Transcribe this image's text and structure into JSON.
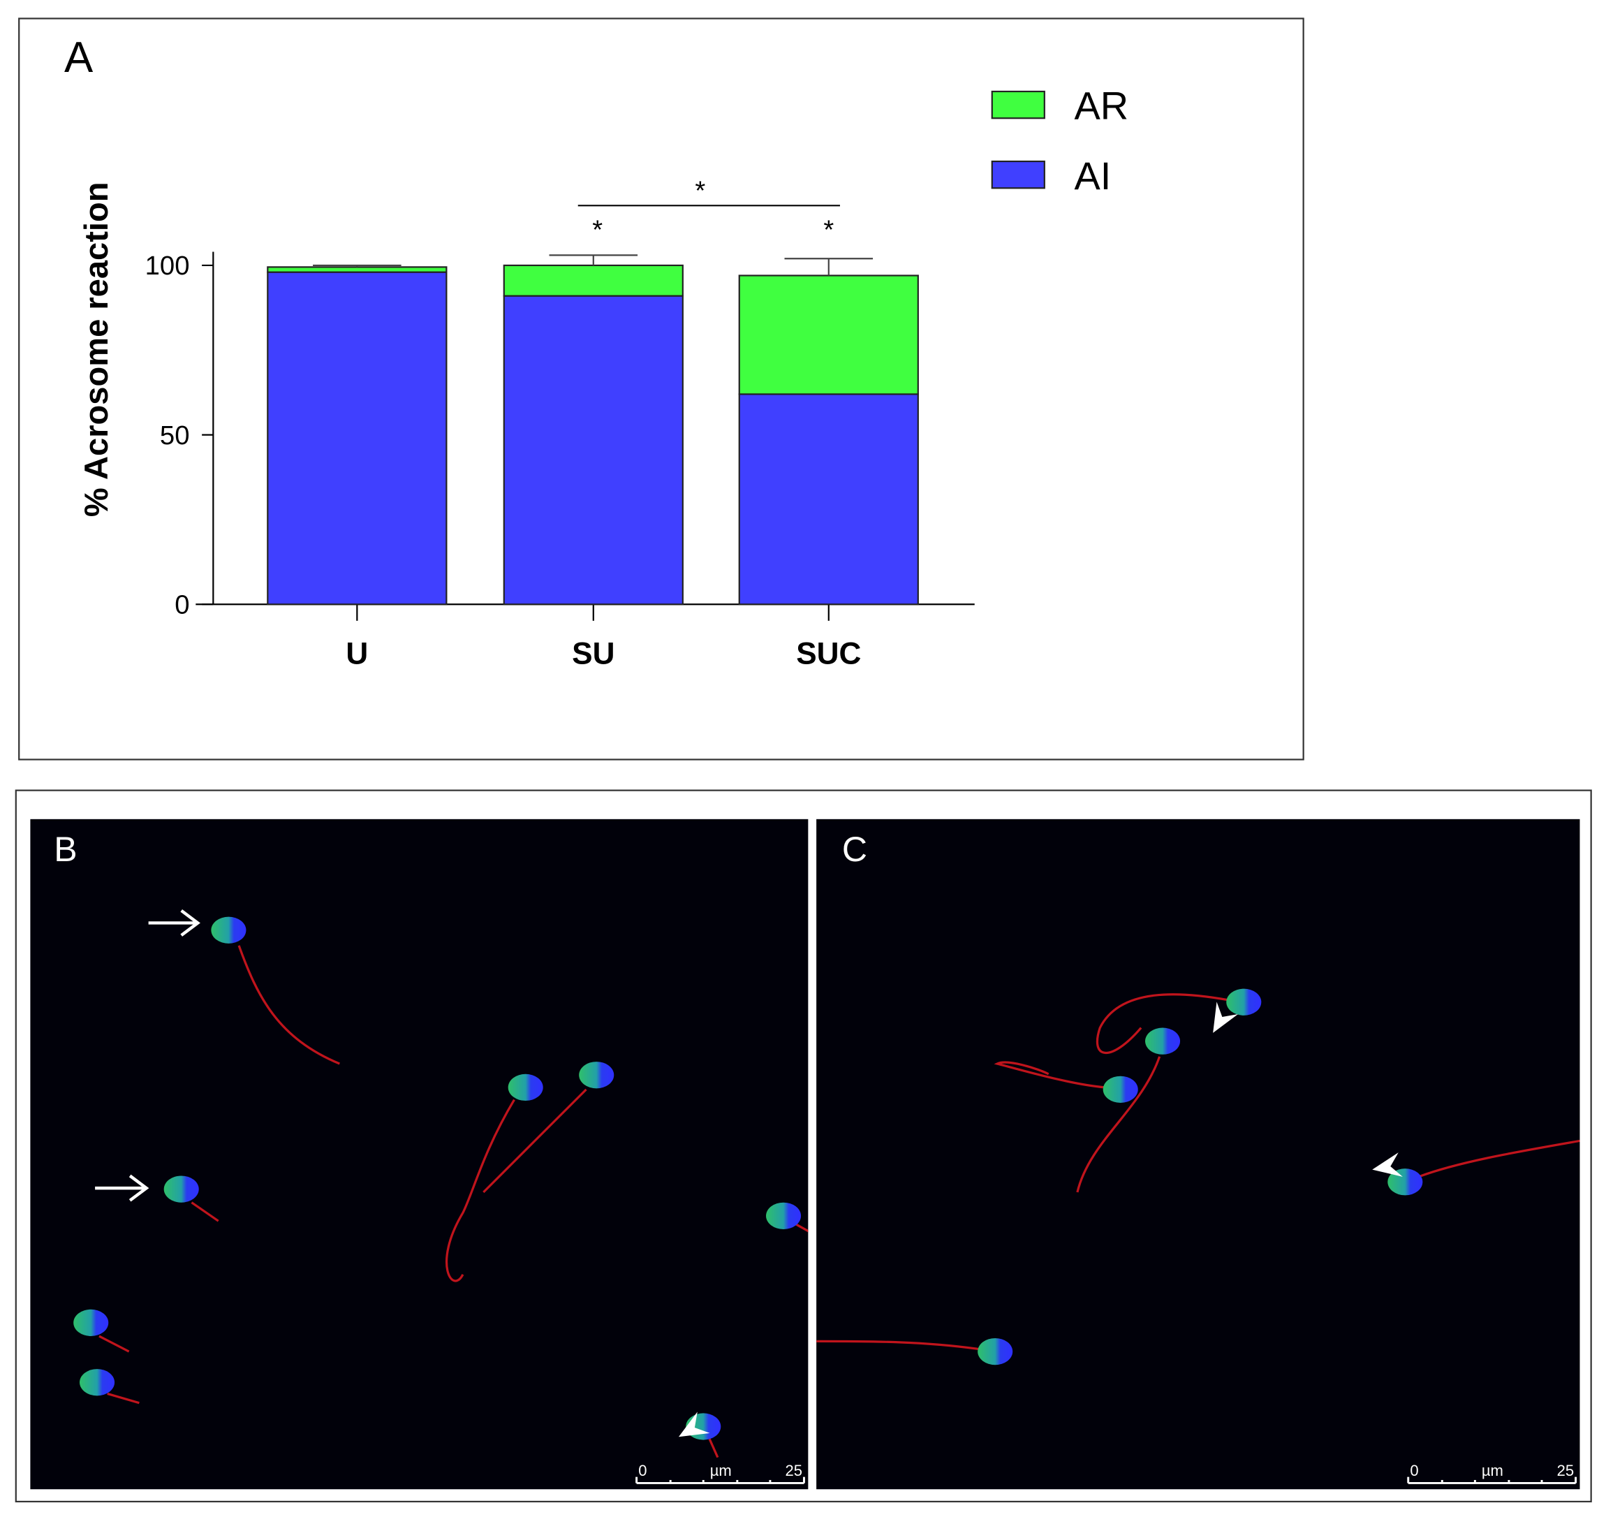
{
  "chart_data": {
    "type": "stacked_bar",
    "panel_label": "A",
    "ylabel": "% Acrosome reaction",
    "categories": [
      "U",
      "SU",
      "SUC"
    ],
    "series": [
      {
        "name": "AI",
        "color": "#4040ff",
        "values": [
          98,
          91,
          62
        ],
        "errors": [
          0.5,
          3,
          6
        ]
      },
      {
        "name": "AR",
        "color": "#40ff40",
        "values": [
          1.5,
          9,
          35
        ],
        "errors": [
          0.5,
          3,
          5
        ]
      }
    ],
    "ylim": [
      0,
      104
    ],
    "yticks": [
      0,
      50,
      100
    ],
    "annotations": [
      "*",
      "*",
      "*"
    ]
  },
  "micrographs": [
    {
      "label": "B",
      "scale_labels": [
        "0",
        "µm",
        "25"
      ]
    },
    {
      "label": "C",
      "scale_labels": [
        "0",
        "µm",
        "25"
      ]
    }
  ]
}
